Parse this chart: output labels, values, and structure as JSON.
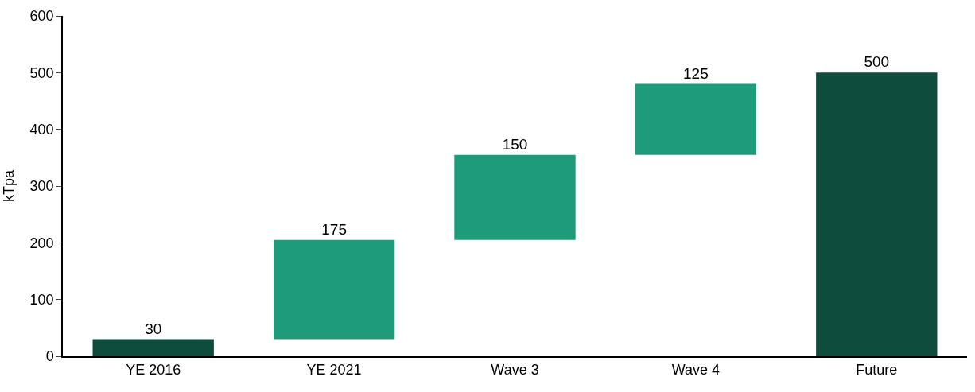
{
  "chart_data": {
    "type": "bar",
    "ylabel": "kTpa",
    "categories": [
      "YE 2016",
      "YE 2021",
      "Wave 3",
      "Wave 4",
      "Future"
    ],
    "values": [
      30,
      175,
      150,
      125,
      500
    ],
    "base": [
      0,
      30,
      205,
      355,
      0
    ],
    "colors": [
      "#0e4d3d",
      "#1e9b78",
      "#1e9b78",
      "#1e9b78",
      "#0e4d3d"
    ],
    "ylim": [
      0,
      600
    ],
    "yticks": [
      0,
      100,
      200,
      300,
      400,
      500,
      600
    ],
    "data_labels": true,
    "legend": false
  }
}
